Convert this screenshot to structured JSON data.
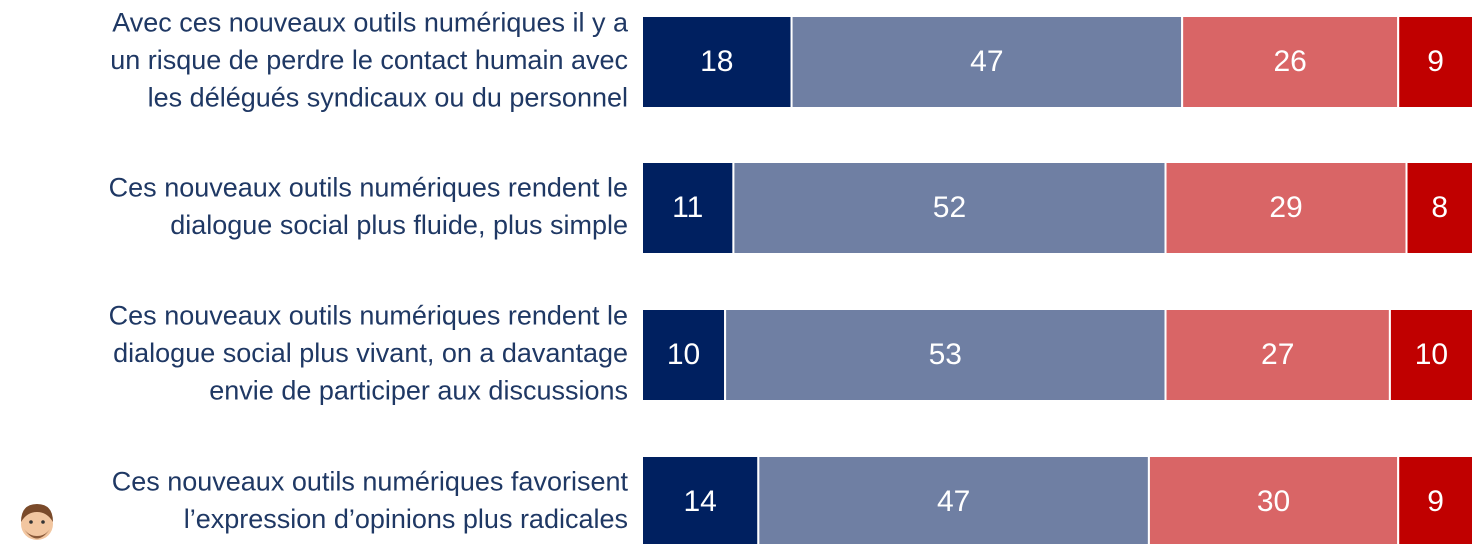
{
  "chart_data": {
    "type": "stacked-bar-horizontal",
    "categories": [
      [
        "Avec ces nouveaux outils numériques il y a",
        "un risque de perdre le contact humain avec",
        "les délégués syndicaux ou du personnel"
      ],
      [
        "Ces nouveaux outils numériques rendent le",
        "dialogue social plus fluide, plus simple"
      ],
      [
        "Ces nouveaux outils numériques rendent le",
        "dialogue social plus vivant, on a davantage",
        "envie de participer aux discussions"
      ],
      [
        "Ces nouveaux outils numériques favorisent",
        "l’expression d’opinions plus radicales"
      ]
    ],
    "series": [
      {
        "color": "#002060",
        "values": [
          18,
          11,
          10,
          14
        ]
      },
      {
        "color": "#6f7fa3",
        "values": [
          47,
          52,
          53,
          47
        ]
      },
      {
        "color": "#d96566",
        "values": [
          26,
          29,
          27,
          30
        ]
      },
      {
        "color": "#c00000",
        "values": [
          9,
          8,
          10,
          9
        ]
      }
    ],
    "xlim": [
      0,
      100
    ]
  }
}
